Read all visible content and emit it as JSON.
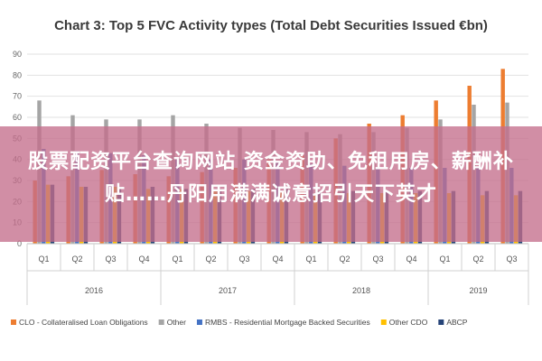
{
  "chart_data": {
    "type": "bar",
    "title": "Chart 3: Top 5 FVC Activity types (Total Debt Securities Issued €bn)",
    "ylim": [
      0,
      90
    ],
    "yticks": [
      0,
      10,
      20,
      30,
      40,
      50,
      60,
      70,
      80,
      90
    ],
    "grid": true,
    "legend_position": "bottom",
    "categories": [
      "Q1",
      "Q2",
      "Q3",
      "Q4",
      "Q1",
      "Q2",
      "Q3",
      "Q4",
      "Q1",
      "Q2",
      "Q3",
      "Q4",
      "Q1",
      "Q2",
      "Q3"
    ],
    "year_groups": [
      {
        "label": "2016",
        "count": 4
      },
      {
        "label": "2017",
        "count": 4
      },
      {
        "label": "2018",
        "count": 4
      },
      {
        "label": "2019",
        "count": 3
      }
    ],
    "series": [
      {
        "name": "CLO - Collateralised Loan Obligations",
        "color": "#ed7d31",
        "values": [
          30,
          32,
          35,
          33,
          32,
          34,
          36,
          40,
          42,
          50,
          57,
          61,
          68,
          75,
          83
        ]
      },
      {
        "name": "Other",
        "color": "#a5a5a5",
        "values": [
          68,
          61,
          59,
          59,
          61,
          57,
          55,
          54,
          53,
          52,
          53,
          55,
          59,
          66,
          67
        ]
      },
      {
        "name": "RMBS - Residential Mortgage Backed Securities",
        "color": "#4472c4",
        "values": [
          45,
          44,
          43,
          42,
          41,
          40,
          40,
          39,
          38,
          37,
          36,
          36,
          36,
          36,
          36
        ]
      },
      {
        "name": "Other CDO",
        "color": "#ffc000",
        "values": [
          28,
          27,
          27,
          26,
          26,
          25,
          25,
          25,
          24,
          24,
          24,
          24,
          24,
          23,
          23
        ]
      },
      {
        "name": "ABCP",
        "color": "#264478",
        "values": [
          28,
          27,
          27,
          27,
          26,
          26,
          26,
          26,
          25,
          25,
          25,
          25,
          25,
          25,
          25
        ]
      }
    ]
  },
  "overlay": {
    "text": "股票配资平台查询网站 资金资助、免租用房、薪酬补贴……丹阳用满满诚意招引天下英才"
  }
}
